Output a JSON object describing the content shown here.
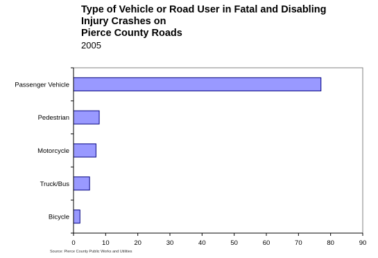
{
  "chart_data": {
    "type": "bar",
    "orientation": "horizontal",
    "title_lines": [
      "Type of Vehicle or Road User in Fatal and Disabling",
      "Injury Crashes on",
      "Pierce County Roads"
    ],
    "subtitle": "2005",
    "categories": [
      "Passenger Vehicle",
      "Pedestrian",
      "Motorcycle",
      "Truck/Bus",
      "Bicycle"
    ],
    "values": [
      77,
      8,
      7,
      5,
      2
    ],
    "xlim": [
      0,
      90
    ],
    "xticks": [
      "0",
      "10",
      "20",
      "30",
      "40",
      "50",
      "60",
      "70",
      "80",
      "90"
    ],
    "grid": false,
    "legend": "none",
    "colors": {
      "bar_fill": "#9999ff",
      "bar_stroke": "#000080",
      "axis": "#000000"
    },
    "source": "Source: Pierce County Public Works and Utilities"
  }
}
